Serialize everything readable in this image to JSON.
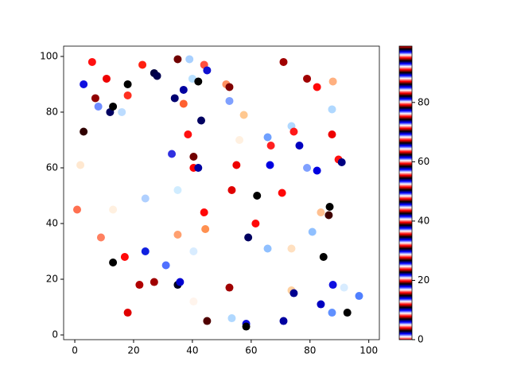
{
  "chart_data": {
    "type": "scatter",
    "x": [
      5.9,
      3,
      10.8,
      7,
      8,
      12,
      13,
      16,
      18,
      18,
      23,
      27,
      28,
      35,
      39,
      40,
      42,
      44,
      45,
      51.5,
      52.6,
      52.6,
      57.5,
      34,
      37,
      37,
      43,
      3,
      38.5,
      40.4,
      40.4,
      42,
      33,
      55,
      56,
      65.6,
      66.7,
      66.4,
      73.7,
      74.5,
      76.4,
      71,
      79,
      82.4,
      87.8,
      87.5,
      87.5,
      89.7,
      90.8,
      79,
      82.4,
      1.9,
      0.8,
      13,
      24,
      35,
      53.4,
      62,
      70.5,
      86.7,
      86.4,
      83.7,
      44,
      61.5,
      35,
      44.4,
      59,
      8.9,
      80.8,
      65.6,
      73.7,
      40.4,
      24,
      17,
      84.6,
      31,
      13,
      22,
      27,
      35,
      35.8,
      52.6,
      73.7,
      74.5,
      87.8,
      91.6,
      96.7,
      83.7,
      87.5,
      92.7,
      18,
      40.4,
      45,
      53.4,
      58.3,
      58.3,
      71
    ],
    "y": [
      98,
      90,
      92,
      85,
      82,
      80,
      82,
      80,
      86,
      90,
      97,
      94,
      93,
      99,
      99,
      92,
      91,
      97,
      95,
      90,
      89,
      84,
      79,
      85,
      88,
      83,
      77,
      73,
      72,
      64,
      60,
      60,
      65,
      61,
      70,
      71,
      68,
      61,
      75,
      73,
      68,
      98,
      92,
      89,
      91,
      81,
      72,
      63,
      62,
      60,
      59,
      61,
      45,
      45,
      49,
      52,
      52,
      50,
      51,
      46,
      43,
      44,
      44,
      40,
      36,
      38,
      35,
      35,
      37,
      31,
      31,
      30,
      30,
      28,
      28,
      25,
      26,
      18,
      19,
      18,
      19,
      17,
      16,
      15,
      18,
      17,
      14,
      11,
      8,
      8,
      8,
      12,
      5,
      6,
      4,
      3,
      5
    ],
    "colors": [
      "#ff1010",
      "#1010e0",
      "#ee0000",
      "#900000",
      "#6f8cff",
      "#000060",
      "#000000",
      "#bcdcff",
      "#ff3020",
      "#000000",
      "#ff2010",
      "#000040",
      "#000050",
      "#700000",
      "#a8d0ff",
      "#b8e0ff",
      "#000000",
      "#ff5040",
      "#1010d0",
      "#ff9060",
      "#800000",
      "#7fa0ff",
      "#ffc890",
      "#000070",
      "#0000a0",
      "#ff6030",
      "#000060",
      "#300000",
      "#ff1010",
      "#700000",
      "#ff0000",
      "#0000a0",
      "#3030e0",
      "#ee0000",
      "#fff0e0",
      "#6fa0ff",
      "#ff2020",
      "#0000e0",
      "#b0d8ff",
      "#ff1818",
      "#0000c0",
      "#a00000",
      "#a00000",
      "#ff0808",
      "#ffb080",
      "#b0d8ff",
      "#ee0000",
      "#ff1010",
      "#000080",
      "#7fa0ff",
      "#0000e0",
      "#ffe8d0",
      "#ff7050",
      "#fff0e0",
      "#b0d0ff",
      "#d0ecff",
      "#e00000",
      "#000000",
      "#ff0808",
      "#000000",
      "#400000",
      "#ffc090",
      "#ff0808",
      "#ff0808",
      "#ffa070",
      "#ff9050",
      "#000060",
      "#ff8060",
      "#90c0ff",
      "#90c0ff",
      "#ffe0c0",
      "#d8ecff",
      "#1020e0",
      "#ff0808",
      "#000000",
      "#5070ff",
      "#000000",
      "#b00000",
      "#a00000",
      "#000020",
      "#0000d0",
      "#a00000",
      "#ffd0a0",
      "#000090",
      "#1010e0",
      "#d8ecff",
      "#5080ff",
      "#0000c0",
      "#6090ff",
      "#000000",
      "#e00000",
      "#fff4ec",
      "#500000",
      "#b0d8ff",
      "#1010e0",
      "#000000",
      "#0000a0"
    ],
    "xlim": [
      -3.8,
      103.6
    ],
    "xticks": [
      0,
      20,
      40,
      60,
      80,
      100
    ],
    "ylim": [
      -1.7,
      103.7
    ],
    "yticks": [
      0,
      20,
      40,
      60,
      80,
      100
    ],
    "colorbar": {
      "lim": [
        0,
        99
      ],
      "ticks": [
        0,
        20,
        40,
        60,
        80
      ],
      "cycle": [
        "#ff0000",
        "#ffffff",
        "#0000ff",
        "#000000"
      ],
      "cycles": 25
    }
  }
}
